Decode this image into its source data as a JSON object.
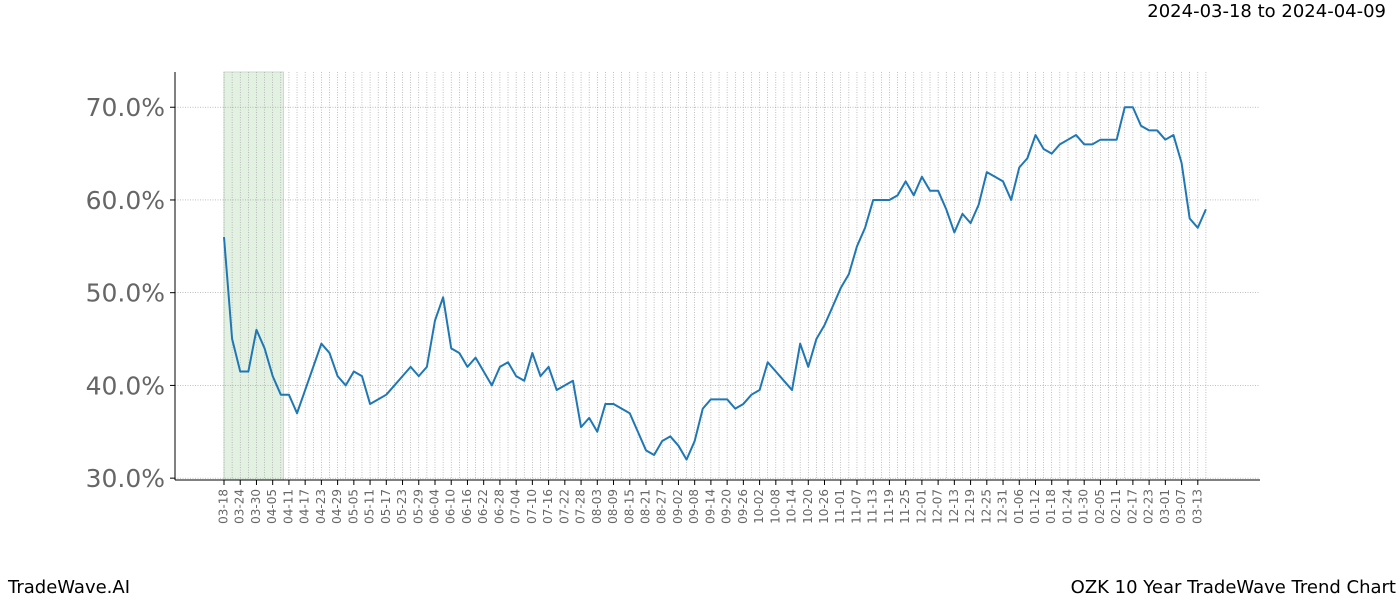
{
  "chart_data": {
    "type": "line",
    "title": "OZK 10 Year TradeWave Trend Chart",
    "subtitle": "2024-03-18 to 2024-04-09",
    "brand": "TradeWave.AI",
    "highlight": {
      "start": "2024-03-18",
      "end": "2024-04-09",
      "color": "#e3f1e3"
    },
    "categories": [
      "03-18",
      null,
      "03-24",
      null,
      "03-30",
      null,
      "04-05",
      null,
      "04-11",
      null,
      "04-17",
      null,
      "04-23",
      null,
      "04-29",
      null,
      "05-05",
      null,
      "05-11",
      null,
      "05-17",
      null,
      "05-23",
      null,
      "05-29",
      null,
      "06-04",
      null,
      "06-10",
      null,
      "06-16",
      null,
      "06-22",
      null,
      "06-28",
      null,
      "07-04",
      null,
      "07-10",
      null,
      "07-16",
      null,
      "07-22",
      null,
      "07-28",
      null,
      "08-03",
      null,
      "08-09",
      null,
      "08-15",
      null,
      "08-21",
      null,
      "08-27",
      null,
      "09-02",
      null,
      "09-08",
      null,
      "09-14",
      null,
      "09-20",
      null,
      "09-26",
      null,
      "10-02",
      null,
      "10-08",
      null,
      "10-14",
      null,
      "10-20",
      null,
      "10-26",
      null,
      "11-01",
      null,
      "11-07",
      null,
      "11-13",
      null,
      "11-19",
      null,
      "11-25",
      null,
      "12-01",
      null,
      "12-07",
      null,
      "12-13",
      null,
      "12-19",
      null,
      "12-25",
      null,
      "12-31",
      null,
      "01-06",
      null,
      "01-12",
      null,
      "01-18",
      null,
      "01-24",
      null,
      "01-30",
      null,
      "02-05",
      null,
      "02-11",
      null,
      "02-17",
      null,
      "02-23",
      null,
      "03-01",
      null,
      "03-07",
      null,
      "03-13",
      null
    ],
    "series": [
      {
        "name": "OZK",
        "color": "#1f77b4",
        "values": [
          56,
          45,
          41.5,
          41.5,
          46,
          44,
          41,
          39,
          39,
          37,
          39.5,
          42,
          44.5,
          43.5,
          41,
          40,
          41.5,
          41,
          38,
          38.5,
          39,
          40,
          41,
          42,
          41,
          42,
          47,
          49.5,
          44,
          43.5,
          42,
          43,
          41.5,
          40,
          42,
          42.5,
          41,
          40.5,
          43.5,
          41,
          42,
          39.5,
          40,
          40.5,
          35.5,
          36.5,
          35,
          38,
          38,
          37.5,
          37,
          35,
          33,
          32.5,
          34,
          34.5,
          33.5,
          32,
          34,
          37.5,
          38.5,
          38.5,
          38.5,
          37.5,
          38,
          39,
          39.5,
          42.5,
          41.5,
          40.5,
          39.5,
          44.5,
          42,
          45,
          46.5,
          48.5,
          50.5,
          52,
          55,
          57,
          60,
          60,
          60,
          60.5,
          62,
          60.5,
          62.5,
          61,
          61,
          59,
          56.5,
          58.5,
          57.5,
          59.5,
          63,
          62.5,
          62,
          60,
          63.5,
          64.5,
          67,
          65.5,
          65,
          66,
          66.5,
          67,
          66,
          66,
          66.5,
          66.5,
          66.5,
          70,
          70,
          68,
          67.5,
          67.5,
          66.5,
          67,
          64,
          58,
          57,
          59
        ]
      }
    ],
    "ylim": [
      29.8,
      73.8
    ],
    "yticks": [
      {
        "value": 30,
        "label": "30.0%"
      },
      {
        "value": 40,
        "label": "40.0%"
      },
      {
        "value": 50,
        "label": "50.0%"
      },
      {
        "value": 60,
        "label": "60.0%"
      },
      {
        "value": 70,
        "label": "70.0%"
      }
    ],
    "grid": true
  }
}
